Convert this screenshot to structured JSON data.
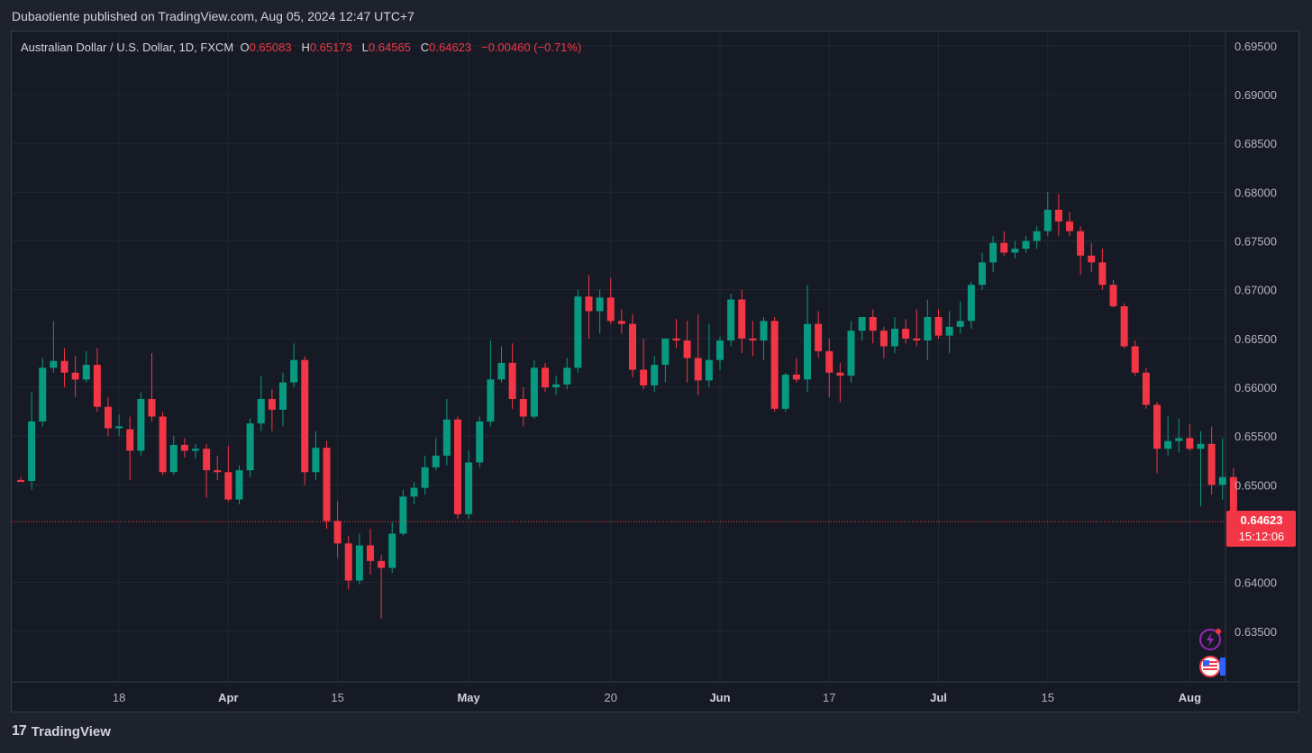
{
  "header": {
    "published": "Dubaotiente published on TradingView.com, Aug 05, 2024 12:47 UTC+7"
  },
  "legend": {
    "symbol": "Australian Dollar / U.S. Dollar, 1D, FXCM",
    "o_label": "O",
    "o_value": "0.65083",
    "h_label": "H",
    "h_value": "0.65173",
    "l_label": "L",
    "l_value": "0.64565",
    "c_label": "C",
    "c_value": "0.64623",
    "change": "−0.00460 (−0.71%)"
  },
  "price_tag": {
    "price": "0.64623",
    "countdown": "15:12:06"
  },
  "footer": {
    "brand": "TradingView",
    "logo": "17"
  },
  "colors": {
    "up": "#089981",
    "down": "#f23645",
    "background": "#161a25",
    "grid": "#252934",
    "text": "#b2b5be"
  },
  "icons": [
    "lightning-icon",
    "us-flag-icon"
  ],
  "chart_data": {
    "type": "candlestick",
    "ylim": [
      0.63,
      0.696
    ],
    "y_ticks": [
      "0.69500",
      "0.69000",
      "0.68500",
      "0.68000",
      "0.67500",
      "0.67000",
      "0.66500",
      "0.66000",
      "0.65500",
      "0.65000",
      "0.64000",
      "0.63500"
    ],
    "x_ticks": [
      {
        "label": "18",
        "index": 9,
        "bold": false
      },
      {
        "label": "Apr",
        "index": 19,
        "bold": true
      },
      {
        "label": "15",
        "index": 29,
        "bold": false
      },
      {
        "label": "May",
        "index": 41,
        "bold": true
      },
      {
        "label": "20",
        "index": 54,
        "bold": false
      },
      {
        "label": "Jun",
        "index": 64,
        "bold": true
      },
      {
        "label": "17",
        "index": 74,
        "bold": false
      },
      {
        "label": "Jul",
        "index": 84,
        "bold": true
      },
      {
        "label": "15",
        "index": 94,
        "bold": false
      },
      {
        "label": "Aug",
        "index": 107,
        "bold": true
      }
    ],
    "last_price": 0.64623,
    "candles": [
      {
        "o": 0.6505,
        "h": 0.6508,
        "l": 0.6503,
        "c": 0.6503
      },
      {
        "o": 0.6504,
        "h": 0.6595,
        "l": 0.6495,
        "c": 0.6565
      },
      {
        "o": 0.6565,
        "h": 0.663,
        "l": 0.656,
        "c": 0.662
      },
      {
        "o": 0.662,
        "h": 0.6668,
        "l": 0.6615,
        "c": 0.6627
      },
      {
        "o": 0.6627,
        "h": 0.664,
        "l": 0.66,
        "c": 0.6615
      },
      {
        "o": 0.6615,
        "h": 0.6632,
        "l": 0.659,
        "c": 0.6608
      },
      {
        "o": 0.6608,
        "h": 0.6637,
        "l": 0.6605,
        "c": 0.6623
      },
      {
        "o": 0.6623,
        "h": 0.664,
        "l": 0.6575,
        "c": 0.658
      },
      {
        "o": 0.658,
        "h": 0.659,
        "l": 0.655,
        "c": 0.6558
      },
      {
        "o": 0.6558,
        "h": 0.6572,
        "l": 0.655,
        "c": 0.656
      },
      {
        "o": 0.6557,
        "h": 0.657,
        "l": 0.6505,
        "c": 0.6535
      },
      {
        "o": 0.6535,
        "h": 0.6595,
        "l": 0.653,
        "c": 0.6588
      },
      {
        "o": 0.6588,
        "h": 0.6635,
        "l": 0.6565,
        "c": 0.657
      },
      {
        "o": 0.657,
        "h": 0.6575,
        "l": 0.651,
        "c": 0.6513
      },
      {
        "o": 0.6513,
        "h": 0.655,
        "l": 0.651,
        "c": 0.6541
      },
      {
        "o": 0.6541,
        "h": 0.6548,
        "l": 0.6528,
        "c": 0.6535
      },
      {
        "o": 0.6535,
        "h": 0.6542,
        "l": 0.6527,
        "c": 0.6537
      },
      {
        "o": 0.6537,
        "h": 0.6542,
        "l": 0.6487,
        "c": 0.6515
      },
      {
        "o": 0.6515,
        "h": 0.653,
        "l": 0.6505,
        "c": 0.6513
      },
      {
        "o": 0.6513,
        "h": 0.654,
        "l": 0.6483,
        "c": 0.6485
      },
      {
        "o": 0.6485,
        "h": 0.652,
        "l": 0.648,
        "c": 0.6515
      },
      {
        "o": 0.6515,
        "h": 0.6568,
        "l": 0.6508,
        "c": 0.6563
      },
      {
        "o": 0.6563,
        "h": 0.6612,
        "l": 0.6555,
        "c": 0.6588
      },
      {
        "o": 0.6588,
        "h": 0.6598,
        "l": 0.6555,
        "c": 0.6577
      },
      {
        "o": 0.6577,
        "h": 0.6615,
        "l": 0.656,
        "c": 0.6605
      },
      {
        "o": 0.6605,
        "h": 0.6645,
        "l": 0.66,
        "c": 0.6628
      },
      {
        "o": 0.6628,
        "h": 0.6632,
        "l": 0.65,
        "c": 0.6513
      },
      {
        "o": 0.6513,
        "h": 0.6555,
        "l": 0.6505,
        "c": 0.6538
      },
      {
        "o": 0.6538,
        "h": 0.6545,
        "l": 0.6455,
        "c": 0.6463
      },
      {
        "o": 0.6463,
        "h": 0.6483,
        "l": 0.6425,
        "c": 0.644
      },
      {
        "o": 0.644,
        "h": 0.6448,
        "l": 0.6393,
        "c": 0.6402
      },
      {
        "o": 0.6402,
        "h": 0.645,
        "l": 0.6398,
        "c": 0.6438
      },
      {
        "o": 0.6438,
        "h": 0.6455,
        "l": 0.6408,
        "c": 0.6422
      },
      {
        "o": 0.6422,
        "h": 0.6428,
        "l": 0.6363,
        "c": 0.6415
      },
      {
        "o": 0.6415,
        "h": 0.6462,
        "l": 0.641,
        "c": 0.645
      },
      {
        "o": 0.645,
        "h": 0.6495,
        "l": 0.6448,
        "c": 0.6488
      },
      {
        "o": 0.6488,
        "h": 0.6503,
        "l": 0.648,
        "c": 0.6497
      },
      {
        "o": 0.6497,
        "h": 0.653,
        "l": 0.649,
        "c": 0.6518
      },
      {
        "o": 0.6518,
        "h": 0.6548,
        "l": 0.6515,
        "c": 0.653
      },
      {
        "o": 0.653,
        "h": 0.6588,
        "l": 0.652,
        "c": 0.6567
      },
      {
        "o": 0.6567,
        "h": 0.657,
        "l": 0.6465,
        "c": 0.647
      },
      {
        "o": 0.647,
        "h": 0.6535,
        "l": 0.6465,
        "c": 0.6523
      },
      {
        "o": 0.6523,
        "h": 0.657,
        "l": 0.6518,
        "c": 0.6565
      },
      {
        "o": 0.6565,
        "h": 0.6648,
        "l": 0.656,
        "c": 0.6608
      },
      {
        "o": 0.6608,
        "h": 0.6642,
        "l": 0.6605,
        "c": 0.6625
      },
      {
        "o": 0.6625,
        "h": 0.6645,
        "l": 0.6578,
        "c": 0.6588
      },
      {
        "o": 0.6588,
        "h": 0.66,
        "l": 0.656,
        "c": 0.657
      },
      {
        "o": 0.657,
        "h": 0.6628,
        "l": 0.6568,
        "c": 0.662
      },
      {
        "o": 0.662,
        "h": 0.6625,
        "l": 0.6595,
        "c": 0.66
      },
      {
        "o": 0.66,
        "h": 0.6612,
        "l": 0.6592,
        "c": 0.6603
      },
      {
        "o": 0.6603,
        "h": 0.663,
        "l": 0.6598,
        "c": 0.662
      },
      {
        "o": 0.662,
        "h": 0.67,
        "l": 0.6615,
        "c": 0.6693
      },
      {
        "o": 0.6693,
        "h": 0.6715,
        "l": 0.665,
        "c": 0.6678
      },
      {
        "o": 0.6678,
        "h": 0.67,
        "l": 0.6655,
        "c": 0.6692
      },
      {
        "o": 0.6692,
        "h": 0.6712,
        "l": 0.6665,
        "c": 0.6668
      },
      {
        "o": 0.6668,
        "h": 0.668,
        "l": 0.6655,
        "c": 0.6665
      },
      {
        "o": 0.6665,
        "h": 0.6675,
        "l": 0.661,
        "c": 0.6618
      },
      {
        "o": 0.6618,
        "h": 0.665,
        "l": 0.6598,
        "c": 0.6602
      },
      {
        "o": 0.6602,
        "h": 0.6632,
        "l": 0.6595,
        "c": 0.6623
      },
      {
        "o": 0.6623,
        "h": 0.665,
        "l": 0.6605,
        "c": 0.665
      },
      {
        "o": 0.665,
        "h": 0.667,
        "l": 0.664,
        "c": 0.6648
      },
      {
        "o": 0.6648,
        "h": 0.6668,
        "l": 0.6605,
        "c": 0.663
      },
      {
        "o": 0.663,
        "h": 0.6675,
        "l": 0.6592,
        "c": 0.6607
      },
      {
        "o": 0.6607,
        "h": 0.6665,
        "l": 0.66,
        "c": 0.6628
      },
      {
        "o": 0.6628,
        "h": 0.6652,
        "l": 0.6618,
        "c": 0.6648
      },
      {
        "o": 0.6648,
        "h": 0.6696,
        "l": 0.6642,
        "c": 0.669
      },
      {
        "o": 0.669,
        "h": 0.67,
        "l": 0.6635,
        "c": 0.665
      },
      {
        "o": 0.665,
        "h": 0.6668,
        "l": 0.6632,
        "c": 0.6648
      },
      {
        "o": 0.6648,
        "h": 0.6672,
        "l": 0.6628,
        "c": 0.6668
      },
      {
        "o": 0.6668,
        "h": 0.6672,
        "l": 0.6575,
        "c": 0.6578
      },
      {
        "o": 0.6578,
        "h": 0.6615,
        "l": 0.6575,
        "c": 0.6613
      },
      {
        "o": 0.6613,
        "h": 0.663,
        "l": 0.6605,
        "c": 0.6608
      },
      {
        "o": 0.6608,
        "h": 0.6705,
        "l": 0.6595,
        "c": 0.6665
      },
      {
        "o": 0.6665,
        "h": 0.6678,
        "l": 0.663,
        "c": 0.6637
      },
      {
        "o": 0.6637,
        "h": 0.665,
        "l": 0.659,
        "c": 0.6615
      },
      {
        "o": 0.6615,
        "h": 0.6625,
        "l": 0.6585,
        "c": 0.6612
      },
      {
        "o": 0.6612,
        "h": 0.6668,
        "l": 0.6605,
        "c": 0.6658
      },
      {
        "o": 0.6658,
        "h": 0.6672,
        "l": 0.6648,
        "c": 0.6672
      },
      {
        "o": 0.6672,
        "h": 0.668,
        "l": 0.6645,
        "c": 0.6658
      },
      {
        "o": 0.6658,
        "h": 0.6662,
        "l": 0.663,
        "c": 0.6642
      },
      {
        "o": 0.6642,
        "h": 0.6672,
        "l": 0.6635,
        "c": 0.666
      },
      {
        "o": 0.666,
        "h": 0.667,
        "l": 0.6645,
        "c": 0.665
      },
      {
        "o": 0.665,
        "h": 0.668,
        "l": 0.6642,
        "c": 0.6648
      },
      {
        "o": 0.6648,
        "h": 0.669,
        "l": 0.6628,
        "c": 0.6672
      },
      {
        "o": 0.6672,
        "h": 0.668,
        "l": 0.665,
        "c": 0.6653
      },
      {
        "o": 0.6653,
        "h": 0.6678,
        "l": 0.6635,
        "c": 0.6662
      },
      {
        "o": 0.6662,
        "h": 0.6688,
        "l": 0.6655,
        "c": 0.6668
      },
      {
        "o": 0.6668,
        "h": 0.6708,
        "l": 0.666,
        "c": 0.6705
      },
      {
        "o": 0.6705,
        "h": 0.6738,
        "l": 0.67,
        "c": 0.6728
      },
      {
        "o": 0.6728,
        "h": 0.6755,
        "l": 0.6718,
        "c": 0.6748
      },
      {
        "o": 0.6748,
        "h": 0.676,
        "l": 0.6735,
        "c": 0.6738
      },
      {
        "o": 0.6738,
        "h": 0.675,
        "l": 0.6732,
        "c": 0.6742
      },
      {
        "o": 0.6742,
        "h": 0.6755,
        "l": 0.6738,
        "c": 0.675
      },
      {
        "o": 0.675,
        "h": 0.6765,
        "l": 0.6742,
        "c": 0.676
      },
      {
        "o": 0.676,
        "h": 0.68,
        "l": 0.6755,
        "c": 0.6782
      },
      {
        "o": 0.6782,
        "h": 0.6798,
        "l": 0.6755,
        "c": 0.677
      },
      {
        "o": 0.677,
        "h": 0.678,
        "l": 0.6755,
        "c": 0.676
      },
      {
        "o": 0.676,
        "h": 0.6765,
        "l": 0.6715,
        "c": 0.6735
      },
      {
        "o": 0.6735,
        "h": 0.6748,
        "l": 0.6718,
        "c": 0.6728
      },
      {
        "o": 0.6728,
        "h": 0.6742,
        "l": 0.67,
        "c": 0.6705
      },
      {
        "o": 0.6705,
        "h": 0.671,
        "l": 0.6682,
        "c": 0.6683
      },
      {
        "o": 0.6683,
        "h": 0.6686,
        "l": 0.664,
        "c": 0.6642
      },
      {
        "o": 0.6642,
        "h": 0.6648,
        "l": 0.6612,
        "c": 0.6615
      },
      {
        "o": 0.6615,
        "h": 0.662,
        "l": 0.6578,
        "c": 0.6582
      },
      {
        "o": 0.6582,
        "h": 0.6585,
        "l": 0.6512,
        "c": 0.6537
      },
      {
        "o": 0.6537,
        "h": 0.657,
        "l": 0.653,
        "c": 0.6545
      },
      {
        "o": 0.6545,
        "h": 0.6568,
        "l": 0.6533,
        "c": 0.6548
      },
      {
        "o": 0.6548,
        "h": 0.6562,
        "l": 0.6535,
        "c": 0.6537
      },
      {
        "o": 0.6537,
        "h": 0.6555,
        "l": 0.6478,
        "c": 0.6542
      },
      {
        "o": 0.6542,
        "h": 0.656,
        "l": 0.649,
        "c": 0.65
      },
      {
        "o": 0.65,
        "h": 0.6548,
        "l": 0.6485,
        "c": 0.6508
      },
      {
        "o": 0.6508,
        "h": 0.6517,
        "l": 0.6457,
        "c": 0.6462
      }
    ]
  }
}
